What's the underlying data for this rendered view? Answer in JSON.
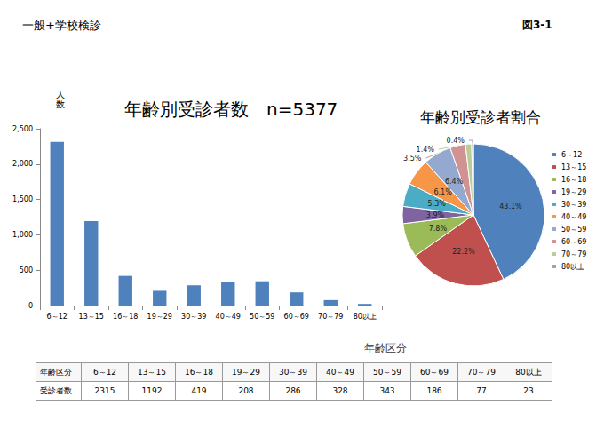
{
  "header": {
    "left": "一般+学校検診",
    "right": "図3-1"
  },
  "chart_data": [
    {
      "type": "bar",
      "title": "年齢別受診者数　n=5377",
      "x_label": "年齢区分",
      "y_label": "人数",
      "categories": [
        "6～12",
        "13～15",
        "16～18",
        "19～29",
        "30～39",
        "40～49",
        "50～59",
        "60～69",
        "70～79",
        "80以上"
      ],
      "values": [
        2315,
        1192,
        419,
        208,
        286,
        328,
        343,
        186,
        77,
        23
      ],
      "color": "#4f81bd",
      "ylim": [
        0,
        2500
      ],
      "yticks": [
        0,
        500,
        1000,
        1500,
        2000,
        2500
      ],
      "grid": false
    },
    {
      "type": "pie",
      "title": "年齢別受診者割合",
      "categories": [
        "6～12",
        "13～15",
        "16～18",
        "19～29",
        "30～39",
        "40～49",
        "50～59",
        "60～69",
        "70～79",
        "80以上"
      ],
      "values": [
        43.1,
        22.2,
        7.8,
        3.9,
        5.3,
        6.1,
        6.4,
        3.5,
        1.4,
        0.4
      ],
      "value_labels": [
        "43.1%",
        "22.2%",
        "7.8%",
        "3.9%",
        "5.3%",
        "6.1%",
        "6.4%",
        "3.5%",
        "1.4%",
        "0.4%"
      ],
      "colors": [
        "#4f81bd",
        "#c0504d",
        "#9bbb59",
        "#8064a2",
        "#4bacc6",
        "#f79646",
        "#93a9cf",
        "#d19392",
        "#b9cd96",
        "#a99bbd"
      ],
      "legend": "right",
      "data_labels": true
    }
  ],
  "table": {
    "rows": [
      [
        "年齢区分",
        "6～12",
        "13～15",
        "16～18",
        "19～29",
        "30～39",
        "40～49",
        "50～59",
        "60～69",
        "70～79",
        "80以上"
      ],
      [
        "受診者数",
        2315,
        1192,
        419,
        208,
        286,
        328,
        343,
        186,
        77,
        23
      ]
    ]
  }
}
